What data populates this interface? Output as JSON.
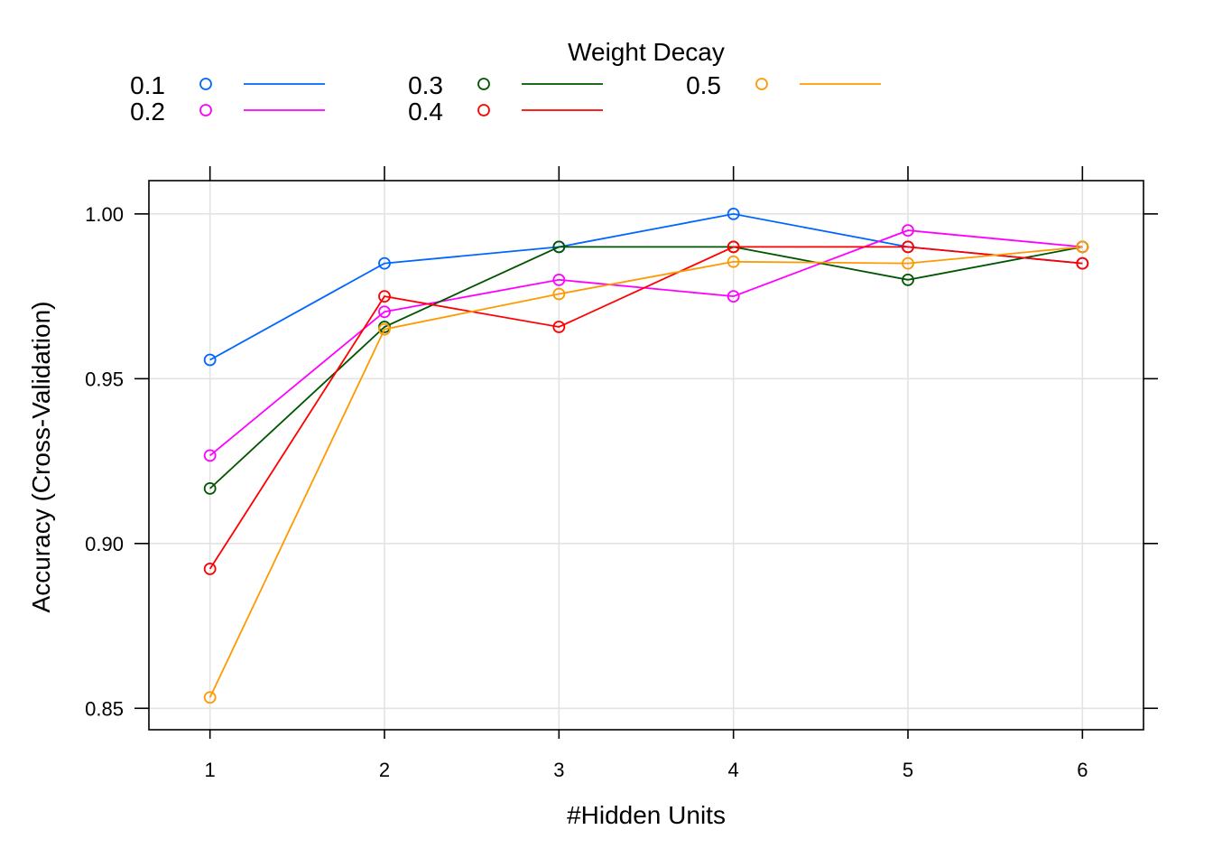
{
  "chart_data": {
    "type": "line",
    "xlabel": "#Hidden Units",
    "ylabel": "Accuracy (Cross-Validation)",
    "legend_title": "Weight Decay",
    "legend_position": "top",
    "grid": true,
    "x": [
      1,
      2,
      3,
      4,
      5,
      6
    ],
    "x_ticks": [
      "1",
      "2",
      "3",
      "4",
      "5",
      "6"
    ],
    "y_ticks": [
      "0.85",
      "0.90",
      "0.95",
      "1.00"
    ],
    "xlim": [
      0.65,
      6.35
    ],
    "ylim": [
      0.8435,
      1.0101
    ],
    "series": [
      {
        "name": "0.1",
        "color": "#0066ff",
        "values": [
          0.9557,
          0.985,
          0.99,
          1.0,
          0.99,
          0.985
        ]
      },
      {
        "name": "0.2",
        "color": "#ff00ff",
        "values": [
          0.9267,
          0.9703,
          0.98,
          0.975,
          0.995,
          0.99
        ]
      },
      {
        "name": "0.3",
        "color": "#005500",
        "values": [
          0.9167,
          0.9657,
          0.99,
          0.99,
          0.98,
          0.99
        ]
      },
      {
        "name": "0.4",
        "color": "#ff0000",
        "values": [
          0.8923,
          0.975,
          0.9657,
          0.99,
          0.99,
          0.985
        ]
      },
      {
        "name": "0.5",
        "color": "#ff9900",
        "values": [
          0.8533,
          0.965,
          0.9757,
          0.9855,
          0.985,
          0.99
        ]
      }
    ]
  }
}
